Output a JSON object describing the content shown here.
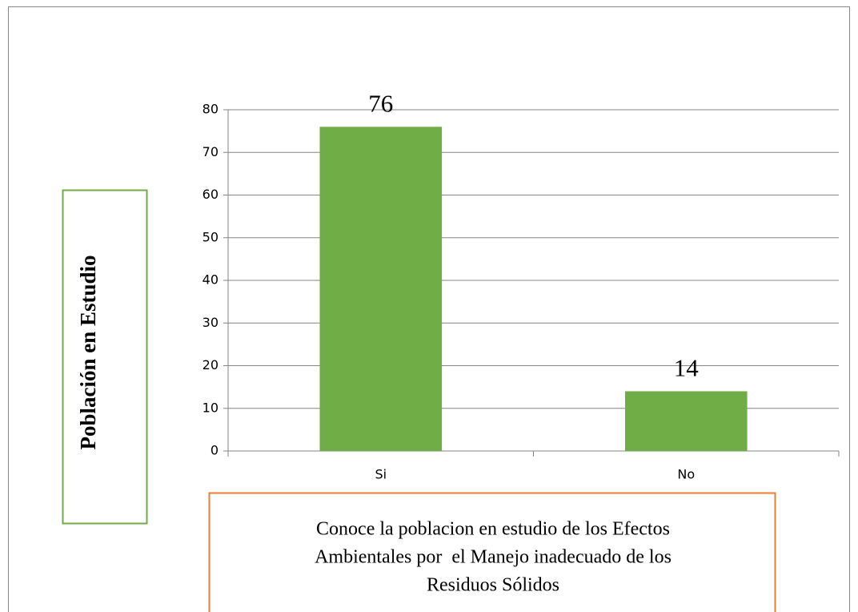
{
  "chart_data": {
    "type": "bar",
    "categories": [
      "Si",
      "No"
    ],
    "values": [
      76,
      14
    ],
    "color": "#70ad47",
    "ylim": [
      0,
      80
    ],
    "yticks": [
      0,
      10,
      20,
      30,
      40,
      50,
      60,
      70,
      80
    ],
    "grid": true,
    "ylabel": "Población en Estudio",
    "xlabel": [
      "Conoce la poblacion en estudio de los Efectos",
      "Ambientales por  el Manejo inadecuado de los",
      "Residuos Sólidos"
    ]
  }
}
